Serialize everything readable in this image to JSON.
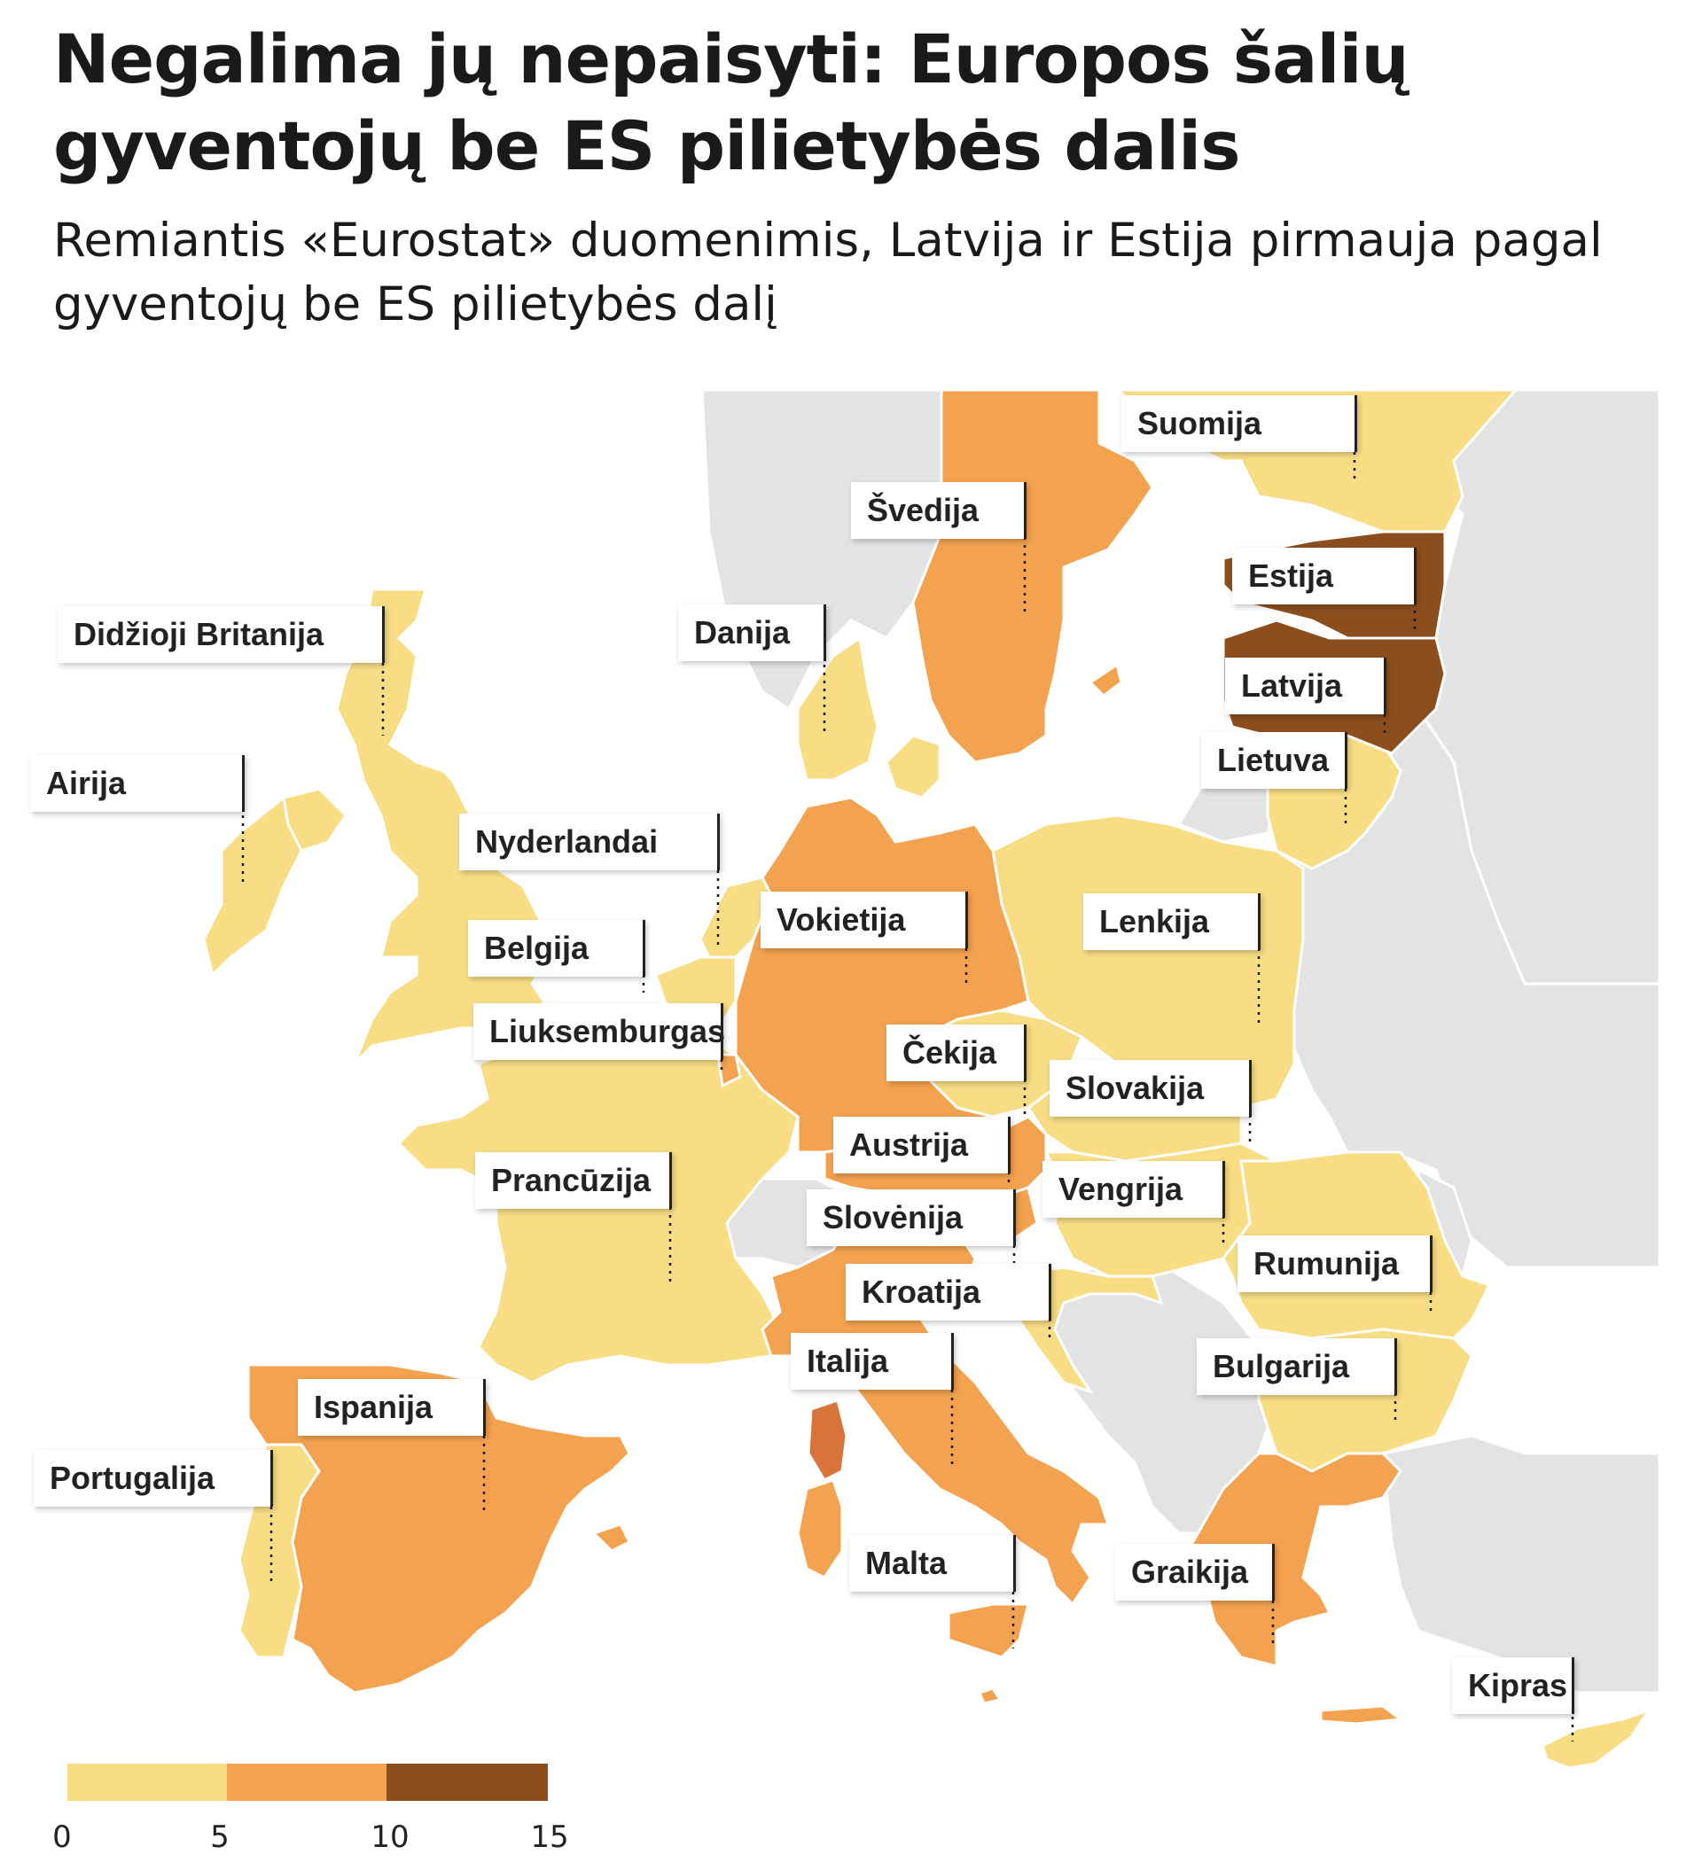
{
  "title": "Negalima jų nepaisyti: Europos šalių gyventojų be ES pilietybės dalis",
  "subtitle": "Remiantis «Eurostat» duomenimis, Latvija ir Estija pirmauja pagal gyventojų be ES pilietybės dalį",
  "colors": {
    "bin_0_5": "#f8dd84",
    "bin_5_10": "#f3a24f",
    "bin_10_15": "#8c4e1d",
    "italy_highlight": "#d8743a",
    "non_eu": "#e3e3e3",
    "background": "#ffffff"
  },
  "legend": {
    "ticks": [
      "0",
      "5",
      "10",
      "15"
    ],
    "bins": [
      {
        "from": 0,
        "to": 5,
        "color": "#f8dd84"
      },
      {
        "from": 5,
        "to": 10,
        "color": "#f3a24f"
      },
      {
        "from": 10,
        "to": 15,
        "color": "#8c4e1d"
      }
    ]
  },
  "countries": [
    {
      "name": "Suomija",
      "bin": "0-5"
    },
    {
      "name": "Švedija",
      "bin": "5-10"
    },
    {
      "name": "Estija",
      "bin": "10-15"
    },
    {
      "name": "Didžioji Britanija",
      "bin": "0-5"
    },
    {
      "name": "Danija",
      "bin": "0-5"
    },
    {
      "name": "Latvija",
      "bin": "10-15"
    },
    {
      "name": "Lietuva",
      "bin": "0-5"
    },
    {
      "name": "Airija",
      "bin": "0-5"
    },
    {
      "name": "Nyderlandai",
      "bin": "0-5"
    },
    {
      "name": "Vokietija",
      "bin": "5-10"
    },
    {
      "name": "Lenkija",
      "bin": "0-5"
    },
    {
      "name": "Belgija",
      "bin": "0-5"
    },
    {
      "name": "Liuksemburgas",
      "bin": "5-10"
    },
    {
      "name": "Čekija",
      "bin": "0-5"
    },
    {
      "name": "Slovakija",
      "bin": "0-5"
    },
    {
      "name": "Austrija",
      "bin": "5-10"
    },
    {
      "name": "Prancūzija",
      "bin": "0-5"
    },
    {
      "name": "Vengrija",
      "bin": "0-5"
    },
    {
      "name": "Slovėnija",
      "bin": "5-10"
    },
    {
      "name": "Rumunija",
      "bin": "0-5"
    },
    {
      "name": "Kroatija",
      "bin": "0-5"
    },
    {
      "name": "Italija",
      "bin": "5-10"
    },
    {
      "name": "Bulgarija",
      "bin": "0-5"
    },
    {
      "name": "Ispanija",
      "bin": "5-10"
    },
    {
      "name": "Portugalija",
      "bin": "0-5"
    },
    {
      "name": "Malta",
      "bin": "5-10"
    },
    {
      "name": "Graikija",
      "bin": "5-10"
    },
    {
      "name": "Kipras",
      "bin": "0-5"
    }
  ]
}
